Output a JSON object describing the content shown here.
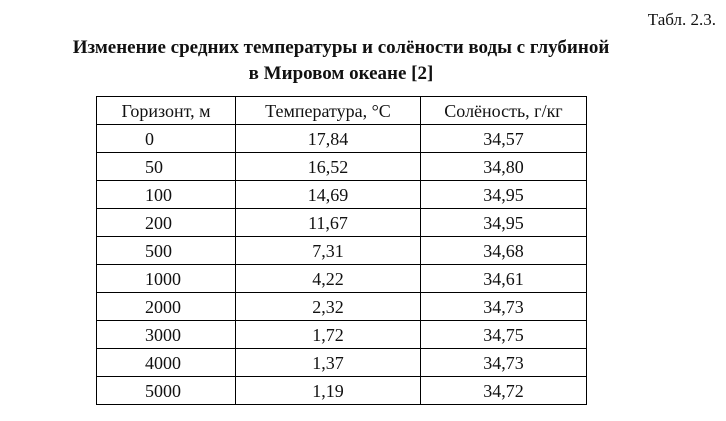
{
  "table_number": "Табл. 2.3.",
  "caption": {
    "line1": "Изменение средних температуры и солёности воды с глубиной",
    "line2": "в Мировом океане [2]"
  },
  "columns": [
    "Горизонт, м",
    "Температура, °С",
    "Солёность, г/кг"
  ],
  "rows": [
    [
      "0",
      "17,84",
      "34,57"
    ],
    [
      "50",
      "16,52",
      "34,80"
    ],
    [
      "100",
      "14,69",
      "34,95"
    ],
    [
      "200",
      "11,67",
      "34,95"
    ],
    [
      "500",
      "7,31",
      "34,68"
    ],
    [
      "1000",
      "4,22",
      "34,61"
    ],
    [
      "2000",
      "2,32",
      "34,73"
    ],
    [
      "3000",
      "1,72",
      "34,75"
    ],
    [
      "4000",
      "1,37",
      "34,73"
    ],
    [
      "5000",
      "1,19",
      "34,72"
    ]
  ]
}
